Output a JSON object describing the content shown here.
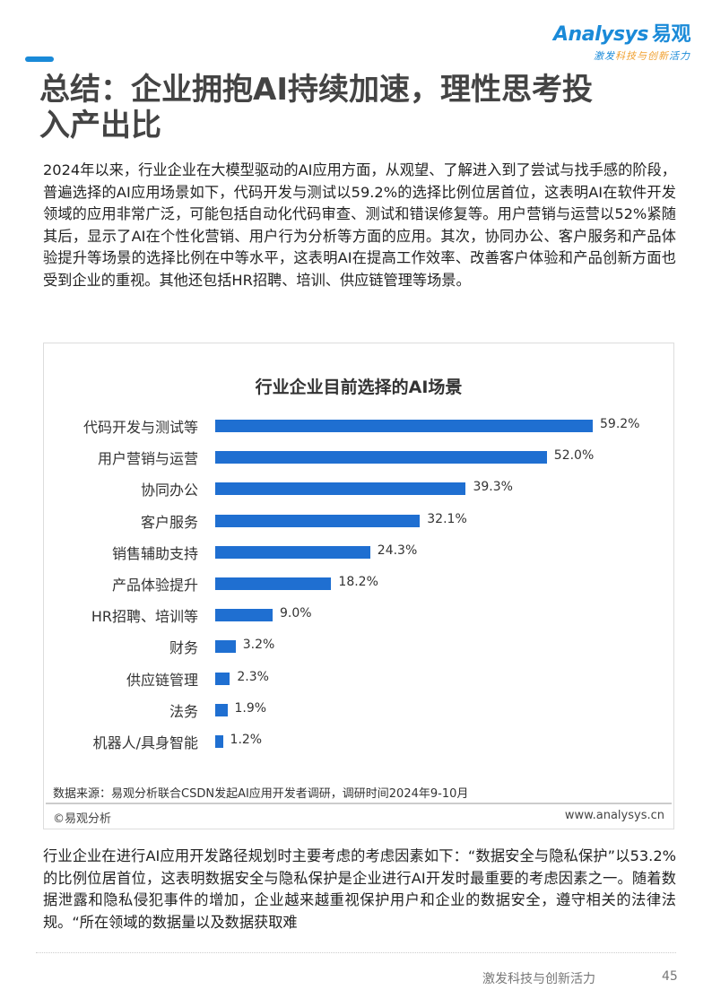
{
  "logo": {
    "brand": "Analysys",
    "brand_cn": "易观",
    "tagline_a": "激发",
    "tagline_b": "科技与创新",
    "tagline_c": "活力"
  },
  "title": "总结：企业拥抱AI持续加速，理性思考投入产出比",
  "para1": "2024年以来，行业企业在大模型驱动的AI应用方面，从观望、了解进入到了尝试与找手感的阶段，普遍选择的AI应用场景如下，代码开发与测试以59.2%的选择比例位居首位，这表明AI在软件开发领域的应用非常广泛，可能包括自动化代码审查、测试和错误修复等。用户营销与运营以52%紧随其后，显示了AI在个性化营销、用户行为分析等方面的应用。其次，协同办公、客户服务和产品体验提升等场景的选择比例在中等水平，这表明AI在提高工作效率、改善客户体验和产品创新方面也受到企业的重视。其他还包括HR招聘、培训、供应链管理等场景。",
  "chart_data": {
    "type": "bar",
    "orientation": "horizontal",
    "title": "行业企业目前选择的AI场景",
    "categories": [
      "代码开发与测试等",
      "用户营销与运营",
      "协同办公",
      "客户服务",
      "销售辅助支持",
      "产品体验提升",
      "HR招聘、培训等",
      "财务",
      "供应链管理",
      "法务",
      "机器人/具身智能"
    ],
    "values": [
      59.2,
      52.0,
      39.3,
      32.1,
      24.3,
      18.2,
      9.0,
      3.2,
      2.3,
      1.9,
      1.2
    ],
    "value_labels": [
      "59.2%",
      "52.0%",
      "39.3%",
      "32.1%",
      "24.3%",
      "18.2%",
      "9.0%",
      "3.2%",
      "2.3%",
      "1.9%",
      "1.2%"
    ],
    "bar_color": "#1f6fd1",
    "source": "数据来源：易观分析联合CSDN发起AI应用开发者调研，调研时间2024年9-10月",
    "copyright": "©易观分析",
    "website": "www.analysys.cn"
  },
  "para2": "行业企业在进行AI应用开发路径规划时主要考虑的考虑因素如下：“数据安全与隐私保护”以53.2%的比例位居首位，这表明数据安全与隐私保护是企业进行AI开发时最重要的考虑因素之一。随着数据泄露和隐私侵犯事件的增加，企业越来越重视保护用户和企业的数据安全，遵守相关的法律法规。“所在领域的数据量以及数据获取难",
  "footer": {
    "slogan": "激发科技与创新活力",
    "page": "45"
  }
}
